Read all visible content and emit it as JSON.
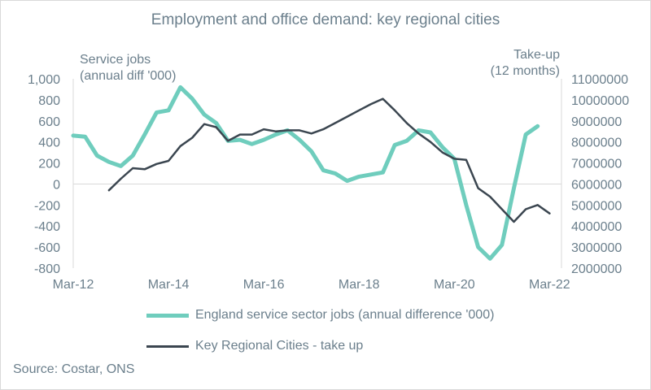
{
  "chart_data": {
    "type": "line",
    "title": "Employment and office demand: key regional cities",
    "ylabel_left": [
      "Service jobs",
      "(annual diff '000)"
    ],
    "ylabel_right": [
      "Take-up",
      "(12 months)"
    ],
    "source": "Source: Costar, ONS",
    "x_ticks": [
      "Mar-12",
      "Mar-14",
      "Mar-16",
      "Mar-18",
      "Mar-20",
      "Mar-22"
    ],
    "x_range": [
      "Mar-12",
      "Jun-22"
    ],
    "y_left": {
      "ticks": [
        "1,000",
        "800",
        "600",
        "400",
        "200",
        "0",
        "-200",
        "-400",
        "-600",
        "-800"
      ],
      "range": [
        -800,
        1000
      ]
    },
    "y_right": {
      "ticks": [
        "11000000",
        "10000000",
        "9000000",
        "8000000",
        "7000000",
        "6000000",
        "5000000",
        "4000000",
        "3000000",
        "2000000"
      ],
      "range": [
        2000000,
        11000000
      ]
    },
    "colors": {
      "service": "#6fcdbd",
      "takeup": "#3b4650",
      "axis": "#d9d9d9",
      "text": "#6b7f8c"
    },
    "series": [
      {
        "name": "England service sector jobs (annual difference '000)",
        "axis": "left",
        "x": [
          "Mar-12",
          "Jun-12",
          "Sep-12",
          "Dec-12",
          "Mar-13",
          "Jun-13",
          "Sep-13",
          "Dec-13",
          "Mar-14",
          "Jun-14",
          "Sep-14",
          "Dec-14",
          "Mar-15",
          "Jun-15",
          "Sep-15",
          "Dec-15",
          "Mar-16",
          "Jun-16",
          "Sep-16",
          "Dec-16",
          "Mar-17",
          "Jun-17",
          "Sep-17",
          "Dec-17",
          "Mar-18",
          "Jun-18",
          "Sep-18",
          "Dec-18",
          "Mar-19",
          "Jun-19",
          "Sep-19",
          "Dec-19",
          "Mar-20",
          "Jun-20",
          "Sep-20",
          "Dec-20",
          "Mar-21",
          "Jun-21",
          "Sep-21",
          "Dec-21"
        ],
        "values": [
          460,
          450,
          270,
          210,
          170,
          270,
          470,
          680,
          700,
          920,
          810,
          660,
          580,
          410,
          420,
          380,
          420,
          470,
          510,
          420,
          310,
          130,
          100,
          30,
          70,
          90,
          110,
          370,
          410,
          510,
          490,
          350,
          240,
          -200,
          -600,
          -710,
          -580,
          -40,
          470,
          550
        ]
      },
      {
        "name": "Key Regional Cities - take up",
        "axis": "right",
        "x": [
          "Dec-12",
          "Mar-13",
          "Jun-13",
          "Sep-13",
          "Dec-13",
          "Mar-14",
          "Jun-14",
          "Sep-14",
          "Dec-14",
          "Mar-15",
          "Jun-15",
          "Sep-15",
          "Dec-15",
          "Mar-16",
          "Jun-16",
          "Sep-16",
          "Dec-16",
          "Mar-17",
          "Jun-17",
          "Sep-17",
          "Dec-17",
          "Mar-18",
          "Jun-18",
          "Sep-18",
          "Dec-18",
          "Mar-19",
          "Jun-19",
          "Sep-19",
          "Dec-19",
          "Mar-20",
          "Jun-20",
          "Sep-20",
          "Dec-20",
          "Mar-21",
          "Jun-21",
          "Sep-21",
          "Dec-21",
          "Mar-22"
        ],
        "values": [
          5700000,
          6250000,
          6750000,
          6700000,
          6950000,
          7100000,
          7800000,
          8200000,
          8850000,
          8700000,
          8050000,
          8350000,
          8350000,
          8600000,
          8500000,
          8550000,
          8550000,
          8400000,
          8600000,
          8900000,
          9200000,
          9500000,
          9800000,
          10050000,
          9500000,
          8900000,
          8400000,
          8000000,
          7500000,
          7200000,
          7150000,
          5800000,
          5400000,
          4800000,
          4200000,
          4800000,
          5000000,
          4600000
        ]
      }
    ]
  }
}
